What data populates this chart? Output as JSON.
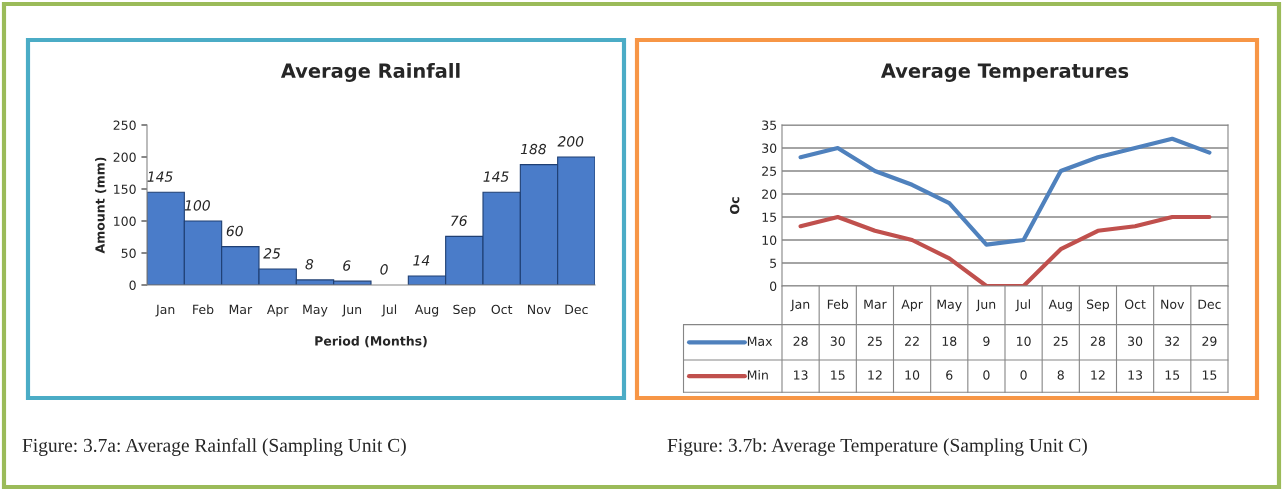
{
  "chart_data": [
    {
      "type": "bar",
      "title": "Average Rainfall",
      "xlabel": "Period (Months)",
      "ylabel": "Amount (mm)",
      "categories": [
        "Jan",
        "Feb",
        "Mar",
        "Apr",
        "May",
        "Jun",
        "Jul",
        "Aug",
        "Sep",
        "Oct",
        "Nov",
        "Dec"
      ],
      "values": [
        145,
        100,
        60,
        25,
        8,
        6,
        0,
        14,
        76,
        145,
        188,
        200
      ],
      "color": "#4a7cc9",
      "ylim": [
        0,
        250
      ],
      "yticks": [
        0,
        50,
        100,
        150,
        200,
        250
      ],
      "grid": false,
      "data_labels": true,
      "annotations": [
        "Figure: 3.7a: Average Rainfall (Sampling Unit C)"
      ]
    },
    {
      "type": "line",
      "title": "Average Temperatures",
      "ylabel": "Oc",
      "categories": [
        "Jan",
        "Feb",
        "Mar",
        "Apr",
        "May",
        "Jun",
        "Jul",
        "Aug",
        "Sep",
        "Oct",
        "Nov",
        "Dec"
      ],
      "series": [
        {
          "name": "Max",
          "color": "#4f81bd",
          "values": [
            28,
            30,
            25,
            22,
            18,
            9,
            10,
            25,
            28,
            30,
            32,
            29
          ]
        },
        {
          "name": "Min",
          "color": "#c0504d",
          "values": [
            13,
            15,
            12,
            10,
            6,
            0,
            0,
            8,
            12,
            13,
            15,
            15
          ]
        }
      ],
      "ylim": [
        0,
        35
      ],
      "yticks": [
        0,
        5,
        10,
        15,
        20,
        25,
        30,
        35
      ],
      "grid": "y",
      "legend": "bottom",
      "data_labels": true,
      "marker": "none",
      "line_style": "solid",
      "annotations": [
        "Figure: 3.7b: Average Temperature (Sampling Unit C)"
      ]
    }
  ]
}
